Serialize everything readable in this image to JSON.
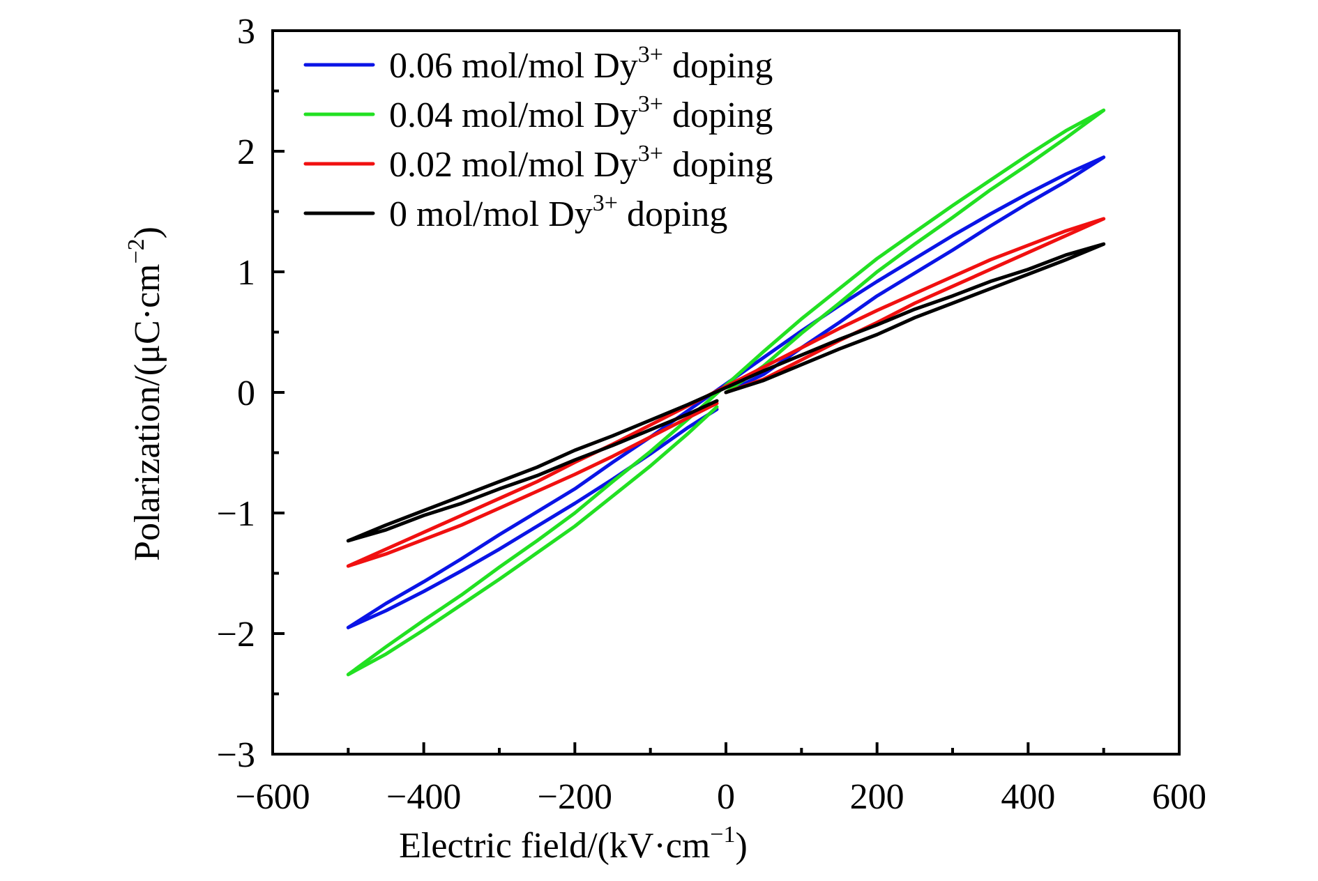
{
  "chart_data": {
    "type": "line",
    "title": "",
    "xlabel": "Electric field/(kV·cm",
    "xlabel_sup": "−1",
    "xlabel_close": ")",
    "ylabel": "Polarization/(μC·cm",
    "ylabel_sup": "−2",
    "ylabel_close": ")",
    "xlim": [
      -600,
      600
    ],
    "ylim": [
      -3,
      3
    ],
    "x_major_ticks": [
      -600,
      -400,
      -200,
      0,
      200,
      400,
      600
    ],
    "x_tick_labels": [
      "−600",
      "−400",
      "−200",
      "0",
      "200",
      "400",
      "600"
    ],
    "x_minor_step": 100,
    "y_major_ticks": [
      -3,
      -2,
      -1,
      0,
      1,
      2,
      3
    ],
    "y_tick_labels": [
      "−3",
      "−2",
      "−1",
      "0",
      "1",
      "2",
      "3"
    ],
    "y_minor_step": 0.5,
    "grid": false,
    "legend_position": "top-left",
    "x": [
      -500,
      -450,
      -400,
      -350,
      -300,
      -250,
      -200,
      -150,
      -100,
      -50,
      0,
      50,
      100,
      150,
      200,
      250,
      300,
      350,
      400,
      450,
      500
    ],
    "series": [
      {
        "name": "0.06 mol/mol Dy",
        "sup": "3+",
        "suffix": " doping",
        "color": "#0a14e6",
        "start": [
          0,
          0
        ],
        "end": [
          -12,
          -0.14
        ],
        "upper_branch": [
          -1.95,
          -1.75,
          -1.57,
          -1.38,
          -1.18,
          -0.99,
          -0.8,
          -0.58,
          -0.37,
          -0.15,
          0.07,
          0.29,
          0.51,
          0.72,
          0.92,
          1.11,
          1.3,
          1.48,
          1.65,
          1.81,
          1.95
        ],
        "lower_branch": [
          -1.95,
          -1.81,
          -1.65,
          -1.48,
          -1.3,
          -1.11,
          -0.92,
          -0.72,
          -0.51,
          -0.29,
          -0.07,
          0.15,
          0.37,
          0.58,
          0.8,
          0.99,
          1.18,
          1.38,
          1.57,
          1.75,
          1.95
        ]
      },
      {
        "name": "0.04 mol/mol Dy",
        "sup": "3+",
        "suffix": " doping",
        "color": "#22e022",
        "start": [
          0,
          0
        ],
        "end": [
          -12,
          -0.12
        ],
        "upper_branch": [
          -2.34,
          -2.11,
          -1.89,
          -1.68,
          -1.45,
          -1.23,
          -1.0,
          -0.74,
          -0.49,
          -0.22,
          0.06,
          0.34,
          0.61,
          0.86,
          1.11,
          1.33,
          1.55,
          1.76,
          1.97,
          2.17,
          2.34
        ],
        "lower_branch": [
          -2.34,
          -2.17,
          -1.97,
          -1.76,
          -1.55,
          -1.33,
          -1.11,
          -0.86,
          -0.61,
          -0.34,
          -0.06,
          0.22,
          0.49,
          0.74,
          1.0,
          1.23,
          1.45,
          1.68,
          1.89,
          2.11,
          2.34
        ]
      },
      {
        "name": "0.02 mol/mol Dy",
        "sup": "3+",
        "suffix": " doping",
        "color": "#f01010",
        "start": [
          0,
          0
        ],
        "end": [
          -12,
          -0.09
        ],
        "upper_branch": [
          -1.44,
          -1.3,
          -1.16,
          -1.02,
          -0.88,
          -0.74,
          -0.58,
          -0.43,
          -0.27,
          -0.11,
          0.05,
          0.21,
          0.37,
          0.53,
          0.68,
          0.82,
          0.96,
          1.1,
          1.22,
          1.34,
          1.44
        ],
        "lower_branch": [
          -1.44,
          -1.34,
          -1.22,
          -1.1,
          -0.96,
          -0.82,
          -0.68,
          -0.53,
          -0.37,
          -0.21,
          -0.05,
          0.11,
          0.27,
          0.43,
          0.58,
          0.74,
          0.88,
          1.02,
          1.16,
          1.3,
          1.44
        ]
      },
      {
        "name": "0 mol/mol Dy",
        "sup": "3+",
        "suffix": " doping",
        "color": "#000000",
        "start": [
          0,
          0
        ],
        "end": [
          -12,
          -0.07
        ],
        "upper_branch": [
          -1.23,
          -1.1,
          -0.98,
          -0.86,
          -0.74,
          -0.62,
          -0.48,
          -0.36,
          -0.23,
          -0.1,
          0.04,
          0.18,
          0.31,
          0.44,
          0.56,
          0.69,
          0.8,
          0.92,
          1.02,
          1.14,
          1.23
        ],
        "lower_branch": [
          -1.23,
          -1.14,
          -1.02,
          -0.92,
          -0.8,
          -0.69,
          -0.56,
          -0.44,
          -0.31,
          -0.18,
          -0.04,
          0.1,
          0.23,
          0.36,
          0.48,
          0.62,
          0.74,
          0.86,
          0.98,
          1.1,
          1.23
        ]
      }
    ]
  }
}
